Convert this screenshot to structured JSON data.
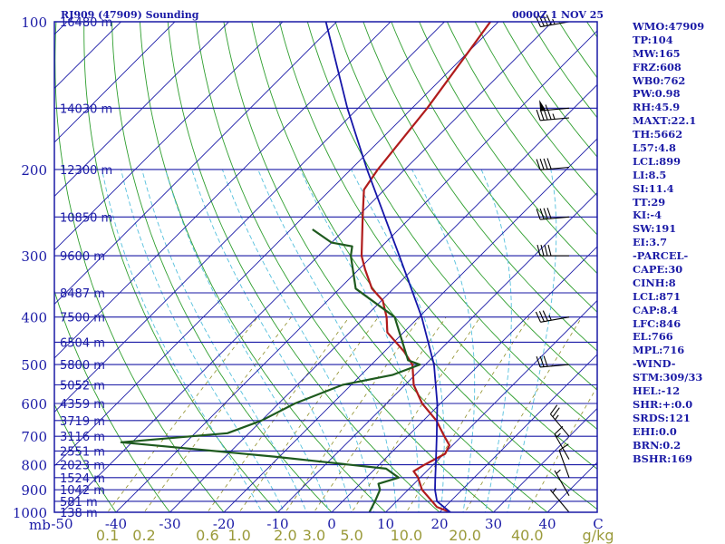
{
  "title": {
    "station": "RJ909 (47909) Sounding",
    "time": "0000Z  1 NOV 25"
  },
  "colors": {
    "frame": "#1a1aa6",
    "isobar": "#1a1aa6",
    "isotherm": "#1a1aa6",
    "dry_adiabat": "#2e9e2e",
    "moist_adiabat": "#55c0dd",
    "mixing_ratio": "#8f8f2a",
    "temperature": "#b01c1c",
    "dewpoint": "#1e5a1e",
    "parcel": "#1515a8",
    "wind": "#000000"
  },
  "chart_data": {
    "type": "skew-t log-p sounding",
    "x_axis": {
      "unit_label": "C",
      "ticks": [
        -50,
        -40,
        -30,
        -20,
        -10,
        0,
        10,
        20,
        30,
        40
      ],
      "range": [
        -50,
        50
      ]
    },
    "y_axis": {
      "unit_label": "mb",
      "scale": "log",
      "range": [
        1000,
        100
      ],
      "ticks": [
        100,
        200,
        300,
        400,
        500,
        600,
        700,
        800,
        900,
        1000
      ]
    },
    "height_labels": [
      {
        "p": 100,
        "label": "16480 m"
      },
      {
        "p": 150,
        "label": "14030 m"
      },
      {
        "p": 200,
        "label": "12300 m"
      },
      {
        "p": 250,
        "label": "10850 m"
      },
      {
        "p": 300,
        "label": "9600 m"
      },
      {
        "p": 357,
        "label": "8487 m"
      },
      {
        "p": 400,
        "label": "7500 m"
      },
      {
        "p": 450,
        "label": "6504 m"
      },
      {
        "p": 500,
        "label": "5800 m"
      },
      {
        "p": 550,
        "label": "5052 m"
      },
      {
        "p": 600,
        "label": "4359 m"
      },
      {
        "p": 650,
        "label": "3719 m"
      },
      {
        "p": 700,
        "label": "3116 m"
      },
      {
        "p": 750,
        "label": "2551 m"
      },
      {
        "p": 800,
        "label": "2023 m"
      },
      {
        "p": 850,
        "label": "1524 m"
      },
      {
        "p": 900,
        "label": "1042 m"
      },
      {
        "p": 950,
        "label": "581 m"
      },
      {
        "p": 1000,
        "label": "138 m"
      }
    ],
    "mixing_ratio_ticks": [
      {
        "w": 0.1,
        "label": "0.1"
      },
      {
        "w": 0.2,
        "label": "0.2"
      },
      {
        "w": 0.6,
        "label": "0.6"
      },
      {
        "w": 1.0,
        "label": "1.0"
      },
      {
        "w": 2.0,
        "label": "2.0"
      },
      {
        "w": 3.0,
        "label": "3.0"
      },
      {
        "w": 5.0,
        "label": "5.0"
      },
      {
        "w": 10.0,
        "label": "10.0"
      },
      {
        "w": 20.0,
        "label": "20.0"
      },
      {
        "w": 40.0,
        "label": "40.0"
      }
    ],
    "mixing_ratio_unit": "g/kg",
    "series": [
      {
        "name": "temperature",
        "points": [
          [
            1000,
            22.0
          ],
          [
            975,
            18.5
          ],
          [
            950,
            16.6
          ],
          [
            900,
            12.6
          ],
          [
            850,
            9.6
          ],
          [
            825,
            7.6
          ],
          [
            800,
            8.4
          ],
          [
            760,
            10.2
          ],
          [
            730,
            9.4
          ],
          [
            700,
            6.8
          ],
          [
            650,
            2.4
          ],
          [
            600,
            -3.4
          ],
          [
            550,
            -8.4
          ],
          [
            500,
            -12.4
          ],
          [
            470,
            -16.4
          ],
          [
            430,
            -23.0
          ],
          [
            400,
            -26.0
          ],
          [
            370,
            -29.8
          ],
          [
            350,
            -34.0
          ],
          [
            320,
            -38.8
          ],
          [
            300,
            -42.0
          ],
          [
            250,
            -49.0
          ],
          [
            220,
            -53.8
          ],
          [
            200,
            -55.0
          ],
          [
            150,
            -57.2
          ],
          [
            115,
            -60.0
          ],
          [
            100,
            -61.5
          ]
        ]
      },
      {
        "name": "dewpoint",
        "points": [
          [
            1000,
            7.0
          ],
          [
            950,
            6.0
          ],
          [
            900,
            4.8
          ],
          [
            875,
            3.4
          ],
          [
            850,
            6.0
          ],
          [
            815,
            2.0
          ],
          [
            770,
            -21.0
          ],
          [
            720,
            -52.0
          ],
          [
            690,
            -34.0
          ],
          [
            650,
            -30.0
          ],
          [
            600,
            -27.0
          ],
          [
            550,
            -21.6
          ],
          [
            525,
            -14.2
          ],
          [
            500,
            -11.0
          ],
          [
            490,
            -14.0
          ],
          [
            400,
            -24.5
          ],
          [
            350,
            -37.0
          ],
          [
            300,
            -44.0
          ],
          [
            287,
            -45.5
          ],
          [
            282,
            -50.0
          ],
          [
            265,
            -56.0
          ]
        ]
      },
      {
        "name": "parcel",
        "points": [
          [
            1000,
            22.0
          ],
          [
            950,
            17.5
          ],
          [
            900,
            15.0
          ],
          [
            850,
            12.8
          ],
          [
            800,
            10.5
          ],
          [
            700,
            5.4
          ],
          [
            600,
            -0.6
          ],
          [
            500,
            -8.4
          ],
          [
            400,
            -19.5
          ],
          [
            300,
            -35.0
          ],
          [
            200,
            -57.0
          ],
          [
            150,
            -72.0
          ],
          [
            100,
            -92.0
          ]
        ]
      }
    ],
    "wind_barbs": [
      {
        "p": 100,
        "dir": 260,
        "speed": 45
      },
      {
        "p": 150,
        "dir": 265,
        "speed": 55
      },
      {
        "p": 157,
        "dir": 265,
        "speed": 45
      },
      {
        "p": 198,
        "dir": 265,
        "speed": 40
      },
      {
        "p": 250,
        "dir": 265,
        "speed": 40
      },
      {
        "p": 300,
        "dir": 270,
        "speed": 40
      },
      {
        "p": 400,
        "dir": 260,
        "speed": 35
      },
      {
        "p": 500,
        "dir": 265,
        "speed": 30
      },
      {
        "p": 700,
        "dir": 320,
        "speed": 25
      },
      {
        "p": 780,
        "dir": 330,
        "speed": 15
      },
      {
        "p": 850,
        "dir": 340,
        "speed": 10
      },
      {
        "p": 925,
        "dir": 330,
        "speed": 5
      },
      {
        "p": 1000,
        "dir": 320,
        "speed": 5
      }
    ]
  },
  "indices": [
    "WMO:47909",
    "TP:104",
    "MW:165",
    "FRZ:608",
    "WB0:762",
    "PW:0.98",
    "RH:45.9",
    "MAXT:22.1",
    "TH:5662",
    "L57:4.8",
    "LCL:899",
    "LI:8.5",
    "SI:11.4",
    "TT:29",
    "KI:-4",
    "SW:191",
    "EI:3.7",
    "-PARCEL-",
    "CAPE:30",
    "CINH:8",
    "LCL:871",
    "CAP:8.4",
    "LFC:846",
    "EL:766",
    "MPL:716",
    "-WIND-",
    "STM:309/33",
    "HEL:-12",
    "SHR:+:0.0",
    "SRDS:121",
    "EHI:0.0",
    "BRN:0.2",
    "BSHR:169"
  ]
}
